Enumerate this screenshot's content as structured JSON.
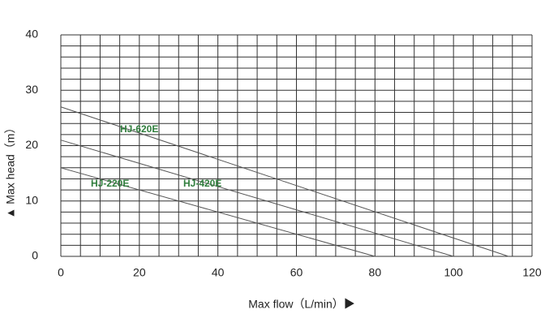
{
  "chart_data": {
    "type": "line",
    "x_label": "Max flow（L/min）▶",
    "y_label": "▲ Max head（m）",
    "series": [
      {
        "name": "HJ-220E",
        "color": "#555555",
        "x": [
          0,
          80
        ],
        "values": [
          16,
          0
        ]
      },
      {
        "name": "HJ-420E",
        "color": "#555555",
        "x": [
          0,
          100
        ],
        "values": [
          21,
          0
        ]
      },
      {
        "name": "HJ-620E",
        "color": "#555555",
        "x": [
          0,
          114
        ],
        "values": [
          27,
          0
        ]
      }
    ],
    "xlim": [
      0,
      120
    ],
    "ylim": [
      0,
      40
    ],
    "xticks": [
      0,
      20,
      40,
      60,
      80,
      100,
      120
    ],
    "yticks": [
      0,
      10,
      20,
      30,
      40
    ],
    "xgrid": [
      0,
      5,
      10,
      15,
      20,
      25,
      30,
      35,
      40,
      45,
      50,
      55,
      60,
      65,
      70,
      75,
      80,
      85,
      90,
      95,
      100,
      105,
      110,
      115,
      120
    ],
    "ygrid": [
      0,
      2,
      4,
      6,
      8,
      10,
      12,
      14,
      16,
      18,
      20,
      22,
      24,
      26,
      28,
      30,
      32,
      34,
      36,
      38,
      40
    ]
  }
}
